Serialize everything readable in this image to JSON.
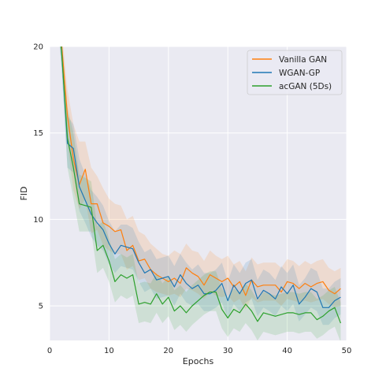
{
  "chart_data": {
    "type": "line",
    "title": "",
    "xlabel": "Epochs",
    "ylabel": "FID",
    "xlim": [
      0,
      50
    ],
    "ylim": [
      3,
      20
    ],
    "xticks": [
      0,
      10,
      20,
      30,
      40,
      50
    ],
    "yticks": [
      5,
      10,
      15,
      20
    ],
    "grid": true,
    "legend_position": "top-right",
    "series": [
      {
        "name": "Vanilla GAN",
        "color": "#ff7f0e",
        "x": [
          1,
          2,
          3,
          4,
          5,
          6,
          7,
          8,
          9,
          10,
          11,
          12,
          13,
          14,
          15,
          16,
          17,
          18,
          19,
          20,
          21,
          22,
          23,
          24,
          25,
          26,
          27,
          28,
          29,
          30,
          31,
          32,
          33,
          34,
          35,
          36,
          37,
          38,
          39,
          40,
          41,
          42,
          43,
          44,
          45,
          46,
          47,
          48,
          49
        ],
        "y": [
          23.0,
          20.2,
          16.0,
          13.5,
          12.0,
          12.9,
          10.9,
          10.9,
          9.8,
          9.6,
          9.3,
          9.4,
          8.2,
          8.5,
          7.6,
          7.7,
          7.1,
          6.8,
          6.6,
          6.4,
          6.6,
          6.3,
          7.2,
          6.9,
          6.7,
          6.2,
          6.8,
          6.6,
          6.4,
          6.6,
          6.1,
          6.4,
          5.6,
          6.5,
          6.1,
          6.2,
          6.2,
          6.2,
          5.8,
          6.4,
          6.3,
          6.0,
          6.3,
          6.1,
          6.3,
          6.4,
          5.9,
          5.7,
          6.0
        ],
        "band_upper": [
          23.5,
          21.0,
          17.5,
          15.5,
          14.5,
          14.5,
          13.0,
          12.5,
          11.8,
          11.2,
          10.9,
          10.8,
          10.0,
          10.2,
          9.3,
          9.1,
          8.6,
          8.3,
          8.0,
          7.9,
          8.2,
          8.0,
          8.6,
          8.2,
          8.1,
          7.6,
          8.2,
          7.9,
          7.7,
          7.9,
          7.4,
          7.6,
          7.0,
          7.8,
          7.4,
          7.5,
          7.5,
          7.5,
          7.2,
          7.7,
          7.6,
          7.3,
          7.6,
          7.4,
          7.6,
          7.7,
          7.2,
          7.0,
          7.2
        ],
        "band_lower": [
          22.5,
          19.4,
          14.5,
          11.7,
          10.6,
          11.2,
          9.2,
          9.4,
          8.5,
          8.2,
          8.0,
          8.0,
          7.1,
          7.3,
          6.5,
          6.6,
          6.0,
          5.8,
          5.7,
          5.6,
          5.7,
          5.5,
          6.0,
          5.9,
          5.7,
          5.4,
          5.8,
          5.6,
          5.5,
          5.6,
          5.2,
          5.4,
          4.8,
          5.5,
          5.2,
          5.3,
          5.3,
          5.3,
          5.0,
          5.4,
          5.3,
          5.2,
          5.3,
          5.2,
          5.3,
          5.4,
          5.1,
          4.9,
          5.0
        ]
      },
      {
        "name": "WGAN-GP",
        "color": "#1f77b4",
        "x": [
          1,
          2,
          3,
          4,
          5,
          6,
          7,
          8,
          9,
          10,
          11,
          12,
          13,
          14,
          15,
          16,
          17,
          18,
          19,
          20,
          21,
          22,
          23,
          24,
          25,
          26,
          27,
          28,
          29,
          30,
          31,
          32,
          33,
          34,
          35,
          36,
          37,
          38,
          39,
          40,
          41,
          42,
          43,
          44,
          45,
          46,
          47,
          48,
          49
        ],
        "y": [
          23.0,
          19.8,
          14.4,
          14.1,
          11.9,
          11.1,
          10.3,
          9.8,
          9.4,
          8.6,
          8.0,
          8.5,
          8.4,
          8.3,
          7.5,
          6.9,
          7.1,
          6.5,
          6.6,
          6.7,
          6.1,
          6.8,
          6.3,
          6.0,
          6.2,
          5.7,
          5.7,
          5.9,
          6.3,
          5.3,
          6.2,
          5.7,
          6.3,
          6.5,
          5.4,
          5.9,
          5.7,
          5.4,
          6.1,
          5.7,
          6.2,
          5.1,
          5.5,
          6.0,
          5.8,
          4.9,
          4.9,
          5.3,
          5.5
        ],
        "band_upper": [
          23.5,
          20.6,
          16.0,
          15.5,
          13.5,
          12.6,
          11.7,
          11.3,
          10.8,
          9.9,
          9.3,
          9.7,
          9.7,
          9.5,
          8.7,
          8.1,
          8.3,
          7.7,
          7.8,
          7.9,
          7.3,
          8.0,
          7.5,
          7.1,
          7.4,
          6.9,
          6.9,
          7.1,
          7.5,
          6.4,
          7.4,
          6.9,
          7.5,
          7.7,
          6.5,
          7.1,
          6.9,
          6.5,
          7.3,
          6.9,
          7.4,
          6.2,
          6.6,
          7.2,
          7.0,
          6.0,
          6.0,
          6.4,
          6.6
        ],
        "band_lower": [
          22.5,
          18.9,
          13.0,
          12.7,
          10.5,
          9.8,
          9.0,
          8.5,
          8.2,
          7.4,
          6.9,
          7.3,
          7.2,
          7.1,
          6.4,
          5.8,
          6.0,
          5.4,
          5.5,
          5.6,
          5.0,
          5.7,
          5.2,
          5.0,
          5.1,
          4.7,
          4.7,
          4.9,
          5.2,
          4.3,
          5.1,
          4.7,
          5.2,
          5.4,
          4.4,
          4.9,
          4.7,
          4.4,
          5.0,
          4.7,
          5.1,
          4.1,
          4.5,
          4.9,
          4.7,
          3.9,
          3.9,
          4.3,
          4.5
        ]
      },
      {
        "name": "acGAN (5Ds)",
        "color": "#2ca02c",
        "x": [
          1,
          2,
          3,
          4,
          5,
          6,
          7,
          8,
          9,
          10,
          11,
          12,
          13,
          14,
          15,
          16,
          17,
          18,
          19,
          20,
          21,
          22,
          23,
          24,
          25,
          26,
          27,
          28,
          29,
          30,
          31,
          32,
          33,
          34,
          35,
          36,
          37,
          38,
          39,
          40,
          41,
          42,
          43,
          44,
          45,
          46,
          47,
          48,
          49
        ],
        "y": [
          23.0,
          19.8,
          14.7,
          13.0,
          10.9,
          10.8,
          10.7,
          8.2,
          8.5,
          7.6,
          6.4,
          6.8,
          6.6,
          6.8,
          5.1,
          5.2,
          5.1,
          5.7,
          5.1,
          5.5,
          4.7,
          5.0,
          4.6,
          5.0,
          5.3,
          5.6,
          5.8,
          5.8,
          4.8,
          4.3,
          4.8,
          4.6,
          5.1,
          4.7,
          4.1,
          4.6,
          4.5,
          4.4,
          4.5,
          4.6,
          4.6,
          4.5,
          4.6,
          4.6,
          4.2,
          4.4,
          4.7,
          4.9,
          4.0
        ],
        "band_upper": [
          23.5,
          20.6,
          16.5,
          15.0,
          12.6,
          12.4,
          12.2,
          9.6,
          9.9,
          8.9,
          7.7,
          8.0,
          7.8,
          8.0,
          6.3,
          6.4,
          6.3,
          6.9,
          6.3,
          6.7,
          5.9,
          6.2,
          5.8,
          6.2,
          6.5,
          6.8,
          7.0,
          7.0,
          6.0,
          5.5,
          6.0,
          5.8,
          6.3,
          5.9,
          5.3,
          5.8,
          5.7,
          5.6,
          5.7,
          5.8,
          5.8,
          5.7,
          5.8,
          5.8,
          5.4,
          5.6,
          5.9,
          6.1,
          5.2
        ],
        "band_lower": [
          22.5,
          18.9,
          13.0,
          11.2,
          9.3,
          9.3,
          9.3,
          6.9,
          7.2,
          6.4,
          5.2,
          5.6,
          5.4,
          5.6,
          4.0,
          4.1,
          4.0,
          4.6,
          4.0,
          4.4,
          3.6,
          3.9,
          3.5,
          3.9,
          4.2,
          4.5,
          4.7,
          4.7,
          3.7,
          3.2,
          3.7,
          3.5,
          4.0,
          3.6,
          3.0,
          3.5,
          3.4,
          3.3,
          3.4,
          3.5,
          3.5,
          3.4,
          3.5,
          3.5,
          3.1,
          3.3,
          3.6,
          3.8,
          2.9
        ]
      }
    ]
  }
}
